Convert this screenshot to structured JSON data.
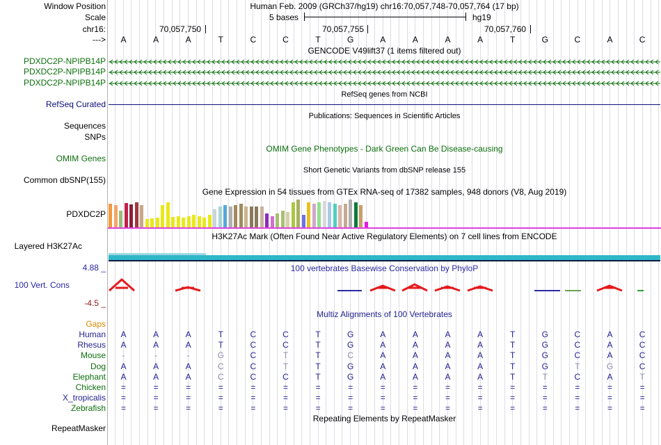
{
  "header": {
    "window_position_label": "Window Position",
    "window_position_value": "Human Feb. 2009 (GRCh37/hg19)   chr16:70,057,748-70,057,764 (17 bp)",
    "scale_label": "Scale",
    "scale_text": "5 bases",
    "scale_assembly": "hg19",
    "chrom_label": "chr16:",
    "arrow_label": "--->",
    "coords": [
      "70,057,750",
      "70,057,755",
      "70,057,760"
    ]
  },
  "bases": [
    "A",
    "A",
    "A",
    "T",
    "C",
    "C",
    "T",
    "G",
    "A",
    "A",
    "A",
    "A",
    "T",
    "G",
    "C",
    "A",
    "C"
  ],
  "tracks": {
    "gencode_title": "GENCODE V49lift37 (1 items filtered out)",
    "gencode_labels": [
      "PDXDC2P-NPIPB14P",
      "PDXDC2P-NPIPB14P",
      "PDXDC2P-NPIPB14P"
    ],
    "refseq_title": "RefSeq genes from NCBI",
    "refseq_label": "RefSeq Curated",
    "pubs_title": "Publications: Sequences in Scientific Articles",
    "sequences_label": "Sequences",
    "snps_label": "SNPs",
    "omim_title": "OMIM Gene Phenotypes - Dark Green Can Be Disease-causing",
    "omim_label": "OMIM Genes",
    "dbsnp_title": "Short Genetic Variants from dbSNP release 155",
    "dbsnp_label": "Common dbSNP(155)",
    "gtex_title": "Gene Expression in 54 tissues from GTEx RNA-seq of 17382 samples, 948 donors (V8, Aug 2019)",
    "gtex_label": "PDXDC2P",
    "h3k_title": "H3K27Ac Mark (Often Found Near Active Regulatory Elements) on 7 cell lines from ENCODE",
    "h3k_label": "Layered H3K27Ac",
    "phylop_title": "100 vertebrates Basewise Conservation by PhyloP",
    "phylop_label": "100 Vert. Cons",
    "phylop_max": "4.88 _",
    "phylop_min": "-4.5 _",
    "multiz_title": "Multiz Alignments of 100 Vertebrates",
    "gaps_label": "Gaps",
    "rmsk_title": "Repeating Elements by RepeatMasker",
    "rmsk_label": "RepeatMasker"
  },
  "colors": {
    "gencode_green": "#0b6e0b",
    "refseq_navy": "#0c0c78",
    "species_green": "#0b6e0b",
    "species_blue": "#1f1f8e",
    "gaps_orange": "#d88a00",
    "cons_red": "#e41a1c",
    "phylop_blue": "#2828a0",
    "phylop_neg": "#8b1a1a",
    "h3k_cyan": "#2fb7c8",
    "magenta": "#e040e0"
  },
  "gtex_bars": [
    {
      "h": 34,
      "c": "#f39a3c"
    },
    {
      "h": 32,
      "c": "#f4a46a"
    },
    {
      "h": 24,
      "c": "#9cbd7a"
    },
    {
      "h": 35,
      "c": "#c0204a"
    },
    {
      "h": 33,
      "c": "#8f1d3a"
    },
    {
      "h": 36,
      "c": "#a03a3a"
    },
    {
      "h": 32,
      "c": "#c8a888"
    },
    {
      "h": 12,
      "c": "#e8e81a"
    },
    {
      "h": 13,
      "c": "#e8e81a"
    },
    {
      "h": 14,
      "c": "#e8e81a"
    },
    {
      "h": 32,
      "c": "#e8e81a"
    },
    {
      "h": 36,
      "c": "#e8e81a"
    },
    {
      "h": 15,
      "c": "#e8e81a"
    },
    {
      "h": 16,
      "c": "#e8e81a"
    },
    {
      "h": 14,
      "c": "#e8e81a"
    },
    {
      "h": 16,
      "c": "#e8e81a"
    },
    {
      "h": 18,
      "c": "#e8e81a"
    },
    {
      "h": 16,
      "c": "#e8e81a"
    },
    {
      "h": 14,
      "c": "#e8e81a"
    },
    {
      "h": 18,
      "c": "#e8e81a"
    },
    {
      "h": 26,
      "c": "#c8d4d8"
    },
    {
      "h": 30,
      "c": "#a8d4d8"
    },
    {
      "h": 32,
      "c": "#55a8d8"
    },
    {
      "h": 30,
      "c": "#b0b0b0"
    },
    {
      "h": 32,
      "c": "#a08a5e"
    },
    {
      "h": 34,
      "c": "#a08a5e"
    },
    {
      "h": 30,
      "c": "#c8b48c"
    },
    {
      "h": 30,
      "c": "#8a7a5a"
    },
    {
      "h": 30,
      "c": "#8a7a5a"
    },
    {
      "h": 30,
      "c": "#c8b49c"
    },
    {
      "h": 20,
      "c": "#8e2ab8"
    },
    {
      "h": 16,
      "c": "#d070d0"
    },
    {
      "h": 20,
      "c": "#a8c070"
    },
    {
      "h": 24,
      "c": "#a8c070"
    },
    {
      "h": 22,
      "c": "#d8d0a8"
    },
    {
      "h": 36,
      "c": "#a8c840"
    },
    {
      "h": 40,
      "c": "#a8b060"
    },
    {
      "h": 18,
      "c": "#7070e8"
    },
    {
      "h": 36,
      "c": "#e8c020"
    },
    {
      "h": 34,
      "c": "#d0a8c8"
    },
    {
      "h": 36,
      "c": "#90e090"
    },
    {
      "h": 38,
      "c": "#d8d8d8"
    },
    {
      "h": 36,
      "c": "#a8c8e8"
    },
    {
      "h": 34,
      "c": "#50d0c0"
    },
    {
      "h": 32,
      "c": "#d8b8a8"
    },
    {
      "h": 34,
      "c": "#c8a890"
    },
    {
      "h": 40,
      "c": "#b0b0b0"
    },
    {
      "h": 36,
      "c": "#0a7a3a"
    },
    {
      "h": 32,
      "c": "#c8a068"
    },
    {
      "h": 8,
      "c": "#e818e0"
    }
  ],
  "species": [
    {
      "name": "Human",
      "color": "#1f1f8e",
      "bases": [
        "A",
        "A",
        "A",
        "T",
        "C",
        "C",
        "T",
        "G",
        "A",
        "A",
        "A",
        "A",
        "T",
        "G",
        "C",
        "A",
        "C"
      ],
      "dim": []
    },
    {
      "name": "Rhesus",
      "color": "#1f1f8e",
      "bases": [
        "A",
        "A",
        "A",
        "T",
        "C",
        "C",
        "T",
        "G",
        "A",
        "A",
        "A",
        "A",
        "T",
        "G",
        "C",
        "A",
        "C"
      ],
      "dim": []
    },
    {
      "name": "Mouse",
      "color": "#0b6e0b",
      "bases": [
        "-",
        "-",
        "-",
        "G",
        "C",
        "T",
        "T",
        "C",
        "A",
        "A",
        "A",
        "A",
        "T",
        "G",
        "C",
        "A",
        "C"
      ],
      "dim": [
        0,
        1,
        2,
        3,
        5,
        7
      ]
    },
    {
      "name": "Dog",
      "color": "#0b6e0b",
      "bases": [
        "A",
        "A",
        "A",
        "C",
        "C",
        "T",
        "T",
        "G",
        "A",
        "A",
        "A",
        "A",
        "T",
        "G",
        "T",
        "G",
        "C"
      ],
      "dim": [
        3,
        5,
        14,
        15
      ]
    },
    {
      "name": "Elephant",
      "color": "#0b6e0b",
      "bases": [
        "A",
        "A",
        "A",
        "C",
        "C",
        "C",
        "T",
        "G",
        "A",
        "A",
        "A",
        "A",
        "T",
        "T",
        "C",
        "A",
        "T"
      ],
      "dim": [
        3,
        13,
        16
      ]
    },
    {
      "name": "Chicken",
      "color": "#0b6e0b",
      "bases": [
        "=",
        "=",
        "=",
        "=",
        "=",
        "=",
        "=",
        "=",
        "=",
        "=",
        "=",
        "=",
        "=",
        "=",
        "=",
        "=",
        "="
      ],
      "dim": []
    },
    {
      "name": "X_tropicalis",
      "color": "#1f1f8e",
      "bases": [
        "=",
        "=",
        "=",
        "=",
        "=",
        "=",
        "=",
        "=",
        "=",
        "=",
        "=",
        "=",
        "=",
        "=",
        "=",
        "=",
        "="
      ],
      "dim": []
    },
    {
      "name": "Zebrafish",
      "color": "#0b6e0b",
      "bases": [
        "=",
        "=",
        "=",
        "=",
        "=",
        "=",
        "=",
        "=",
        "=",
        "=",
        "=",
        "=",
        "=",
        "=",
        "=",
        "=",
        "="
      ],
      "dim": []
    }
  ]
}
